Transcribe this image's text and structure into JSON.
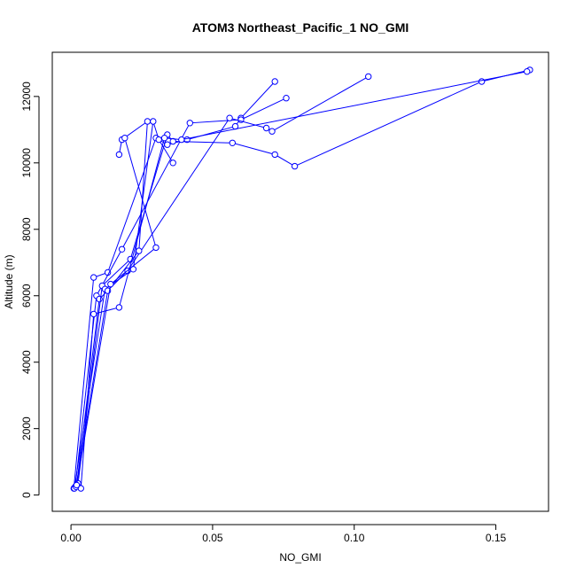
{
  "chart_data": {
    "type": "line",
    "title": "ATOM3 Northeast_Pacific_1 NO_GMI",
    "xlabel": "NO_GMI",
    "ylabel": "Altitude (m)",
    "xlim": [
      -0.0066,
      0.1686
    ],
    "ylim": [
      -490,
      13330
    ],
    "xticks": [
      0.0,
      0.05,
      0.1,
      0.15
    ],
    "xtick_labels": [
      "0.00",
      "0.05",
      "0.10",
      "0.15"
    ],
    "yticks": [
      0,
      2000,
      4000,
      6000,
      8000,
      10000,
      12000
    ],
    "ytick_labels": [
      "0",
      "2000",
      "4000",
      "6000",
      "8000",
      "10000",
      "12000"
    ],
    "color": "#0000ff",
    "series": [
      {
        "x": [
          0.001,
          0.008,
          0.013,
          0.03,
          0.034,
          0.041,
          0.058,
          0.06,
          0.072
        ],
        "y": [
          200,
          6550,
          6700,
          10750,
          10550,
          10700,
          11100,
          11350,
          12450
        ]
      },
      {
        "x": [
          0.0015,
          0.009,
          0.018,
          0.042,
          0.06,
          0.076
        ],
        "y": [
          250,
          6000,
          7400,
          11200,
          11300,
          11950
        ]
      },
      {
        "x": [
          0.002,
          0.01,
          0.02,
          0.056,
          0.069,
          0.071,
          0.105
        ],
        "y": [
          300,
          5900,
          6750,
          11350,
          11050,
          10950,
          12600
        ]
      },
      {
        "x": [
          0.0025,
          0.011,
          0.021,
          0.034,
          0.036,
          0.057,
          0.072,
          0.079,
          0.145,
          0.162
        ],
        "y": [
          350,
          6300,
          7100,
          10850,
          10650,
          10600,
          10250,
          9900,
          12450,
          12800
        ]
      },
      {
        "x": [
          0.0035,
          0.008,
          0.017,
          0.033,
          0.039,
          0.161
        ],
        "y": [
          200,
          5450,
          5650,
          10750,
          10700,
          12750
        ]
      },
      {
        "x": [
          0.0012,
          0.012,
          0.022,
          0.029,
          0.031,
          0.036
        ],
        "y": [
          200,
          6200,
          6800,
          11250,
          10700,
          10000
        ]
      },
      {
        "x": [
          0.0018,
          0.013,
          0.024,
          0.027,
          0.018,
          0.017
        ],
        "y": [
          250,
          6150,
          7350,
          11250,
          10700,
          10250
        ]
      },
      {
        "x": [
          0.002,
          0.014,
          0.03,
          0.019
        ],
        "y": [
          300,
          6350,
          7450,
          10750
        ]
      }
    ]
  }
}
